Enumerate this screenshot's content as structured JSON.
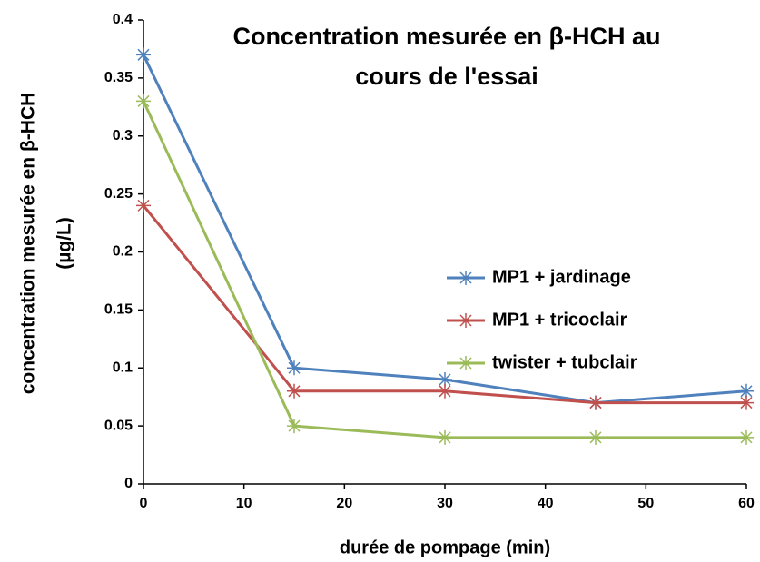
{
  "chart_data": {
    "type": "line",
    "title": [
      "Concentration mesurée en β-HCH au",
      "cours de l'essai"
    ],
    "x_label": "durée de pompage (min)",
    "y_label": [
      "concentration  mesurée en β-HCH",
      "(µg/L)"
    ],
    "x": [
      0,
      15,
      30,
      45,
      60
    ],
    "series": [
      {
        "name": "MP1 + jardinage",
        "color": "#4f81bd",
        "values": [
          0.37,
          0.1,
          0.09,
          0.07,
          0.08
        ]
      },
      {
        "name": "MP1 + tricoclair",
        "color": "#c0504d",
        "values": [
          0.24,
          0.08,
          0.08,
          0.07,
          0.07
        ]
      },
      {
        "name": "twister + tubclair",
        "color": "#9bbb59",
        "values": [
          0.33,
          0.05,
          0.04,
          0.04,
          0.04
        ]
      }
    ],
    "xlim": [
      0,
      60
    ],
    "xticks": [
      0,
      10,
      20,
      30,
      40,
      50,
      60
    ],
    "ylim": [
      0,
      0.4
    ],
    "yticks": [
      0,
      0.05,
      0.1,
      0.15,
      0.2,
      0.25,
      0.3,
      0.35,
      0.4
    ],
    "grid": false,
    "legend": "right"
  }
}
